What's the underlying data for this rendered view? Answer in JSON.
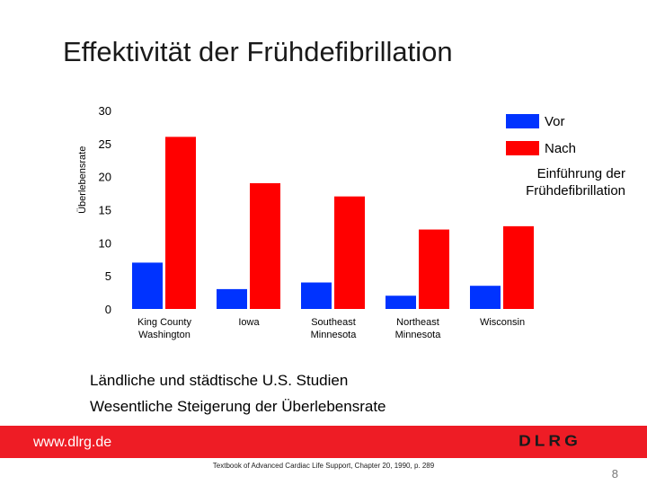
{
  "title": "Effektivität der Frühdefibrillation",
  "legend": {
    "before": "Vor",
    "after": "Nach",
    "note_line1": "Einführung der",
    "note_line2": "Frühdefibrillation"
  },
  "notes": [
    "Ländliche und städtische U.S. Studien",
    "Wesentliche Steigerung der Überlebensrate"
  ],
  "footer": {
    "website": "www.dlrg.de",
    "logo_text": "DLRG",
    "citation": "Textbook of Advanced Cardiac Life Support, Chapter 20, 1990, p. 289",
    "page_number": "8"
  },
  "colors": {
    "before": "#0033ff",
    "after": "#ff0000",
    "footer_red": "#ee1c25"
  },
  "chart_data": {
    "type": "bar",
    "title": "Effektivität der Frühdefibrillation",
    "ylabel": "Überlebensrate",
    "xlabel": "",
    "ylim": [
      0,
      30
    ],
    "yticks": [
      0,
      5,
      10,
      15,
      20,
      25,
      30
    ],
    "categories": [
      [
        "King County",
        "Washington"
      ],
      [
        "Iowa"
      ],
      [
        "Southeast",
        "Minnesota"
      ],
      [
        "Northeast",
        "Minnesota"
      ],
      [
        "Wisconsin"
      ]
    ],
    "series": [
      {
        "name": "Vor",
        "values": [
          7,
          3,
          4,
          2,
          3.5
        ]
      },
      {
        "name": "Nach",
        "values": [
          26,
          19,
          17,
          12,
          12.5
        ]
      }
    ]
  }
}
